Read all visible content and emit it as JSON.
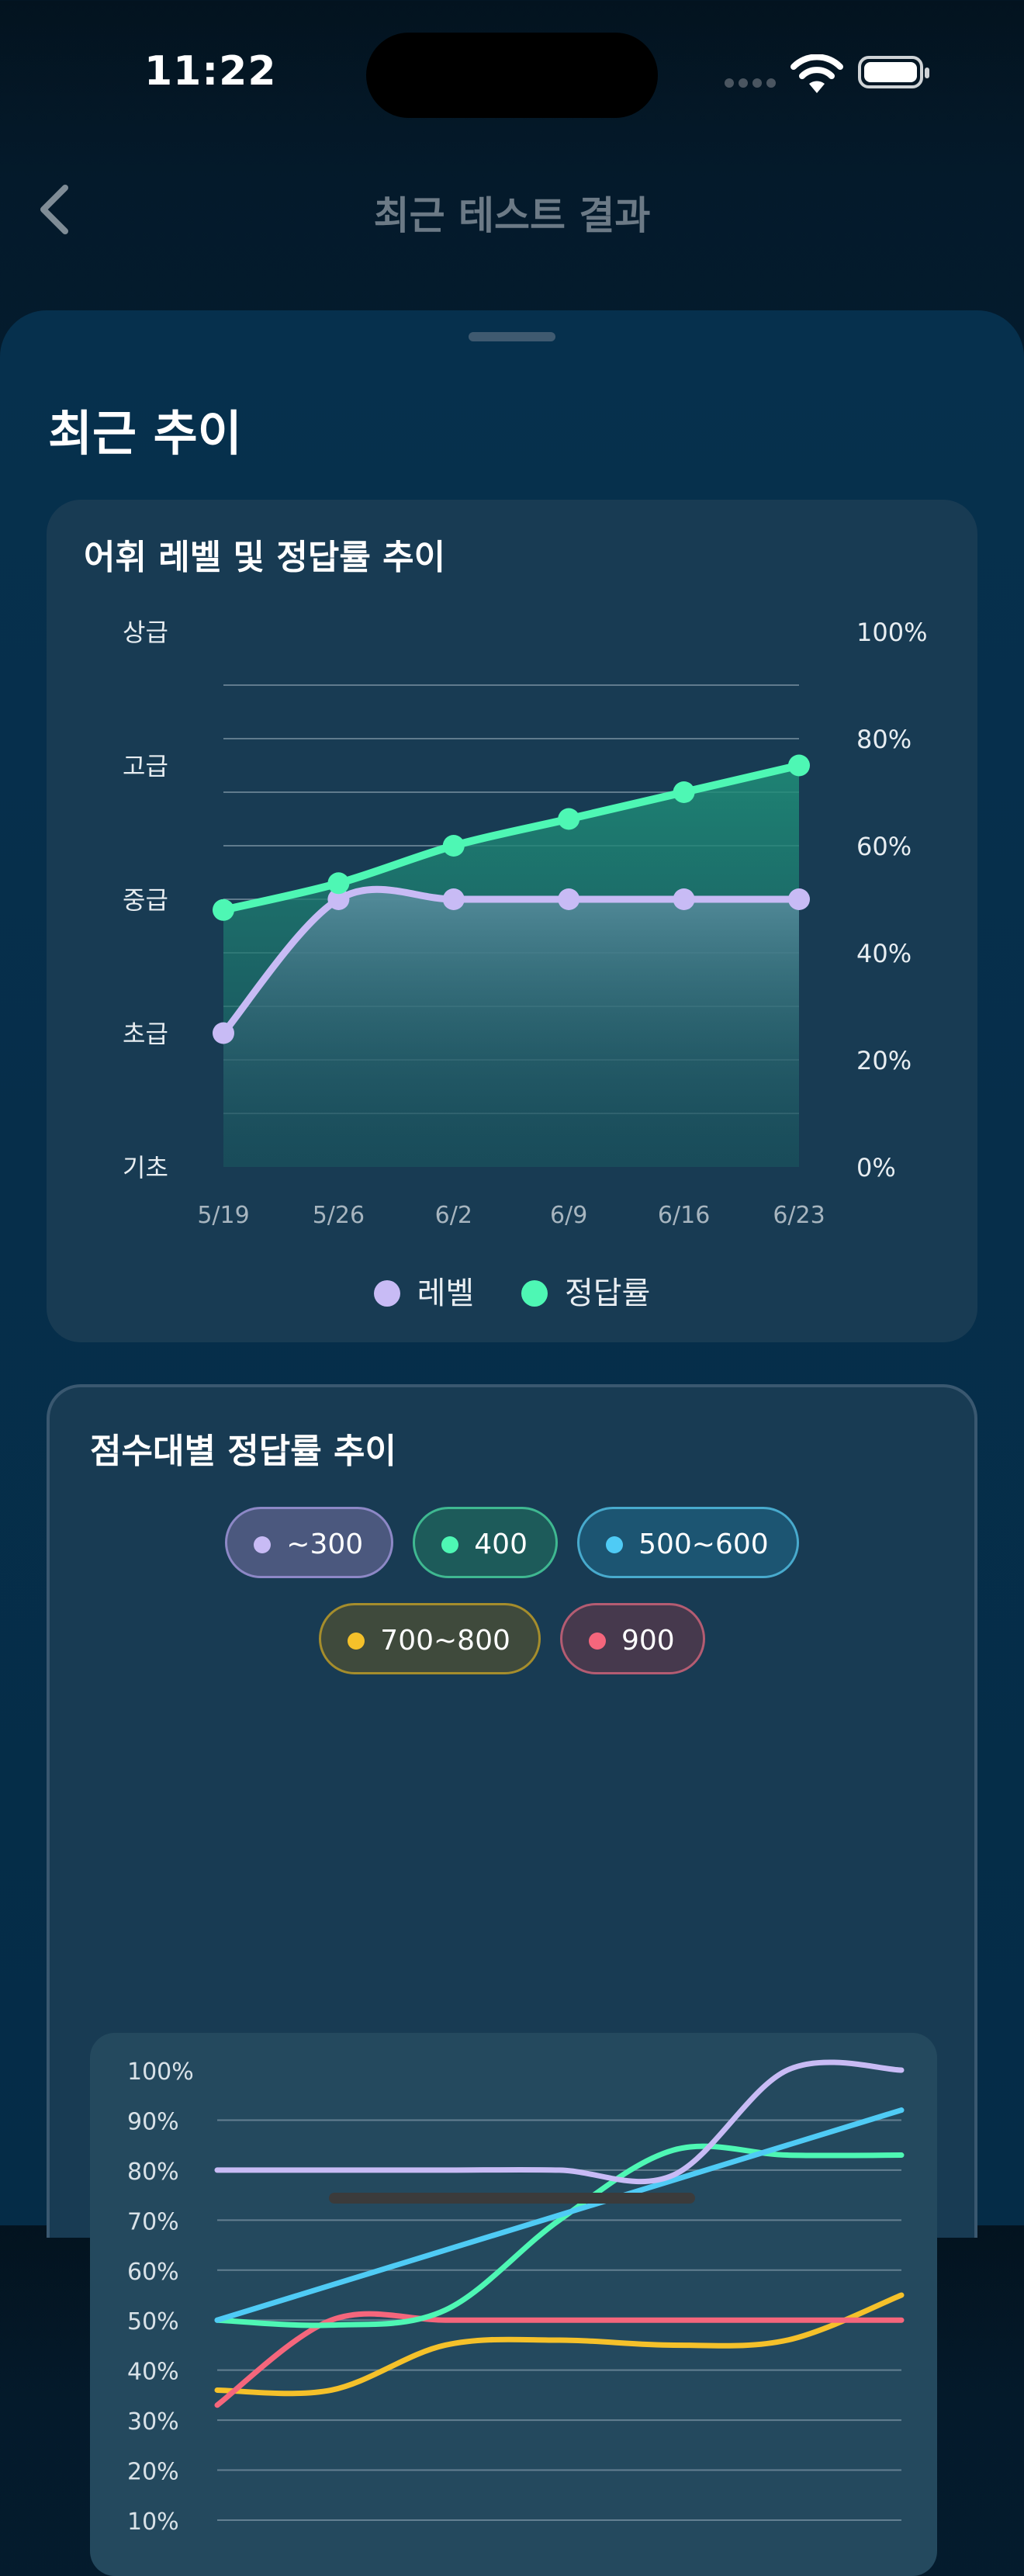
{
  "status_bar": {
    "time": "11:22"
  },
  "nav": {
    "title": "최근 테스트 결과"
  },
  "section": {
    "title": "최근 추이"
  },
  "colors": {
    "level": "#c8bbf5",
    "accuracy": "#4ef7b4",
    "s300": "#c8bbf5",
    "s400": "#4ef7b4",
    "s500": "#4fcbf5",
    "s700": "#f5c12a",
    "s900": "#f5667c"
  },
  "chart_data": [
    {
      "type": "line",
      "title": "어휘 레벨 및 정답률 추이",
      "categories": [
        "5/19",
        "5/26",
        "6/2",
        "6/9",
        "6/16",
        "6/23"
      ],
      "y_left_labels": [
        "기초",
        "초급",
        "중급",
        "고급",
        "상급"
      ],
      "y_right_labels": [
        "0%",
        "20%",
        "40%",
        "60%",
        "80%",
        "100%"
      ],
      "y_right_range": [
        0,
        100
      ],
      "series": [
        {
          "name": "레벨",
          "values": [
            1,
            2,
            2,
            2,
            2,
            2
          ]
        },
        {
          "name": "정답률",
          "values": [
            48,
            53,
            60,
            65,
            70,
            75
          ]
        }
      ],
      "grid": true,
      "legend": "bottom"
    },
    {
      "type": "line",
      "title": "점수대별 정답률 추이",
      "y_labels": [
        "10%",
        "20%",
        "30%",
        "40%",
        "50%",
        "60%",
        "70%",
        "80%",
        "90%",
        "100%"
      ],
      "ylim": [
        0,
        100
      ],
      "x": [
        0,
        1,
        2,
        3,
        4,
        5,
        6
      ],
      "series": [
        {
          "name": "~300",
          "values": [
            80,
            80,
            80,
            80,
            79,
            100,
            100
          ]
        },
        {
          "name": "400",
          "values": [
            50,
            49,
            52,
            70,
            84,
            83,
            83
          ]
        },
        {
          "name": "500~600",
          "values": [
            50,
            57,
            64,
            71,
            78,
            85,
            92
          ]
        },
        {
          "name": "700~800",
          "values": [
            36,
            36,
            45,
            46,
            45,
            46,
            55
          ]
        },
        {
          "name": "900",
          "values": [
            33,
            50,
            50,
            50,
            50,
            50,
            50
          ]
        }
      ],
      "grid": true,
      "legend": "top"
    }
  ]
}
